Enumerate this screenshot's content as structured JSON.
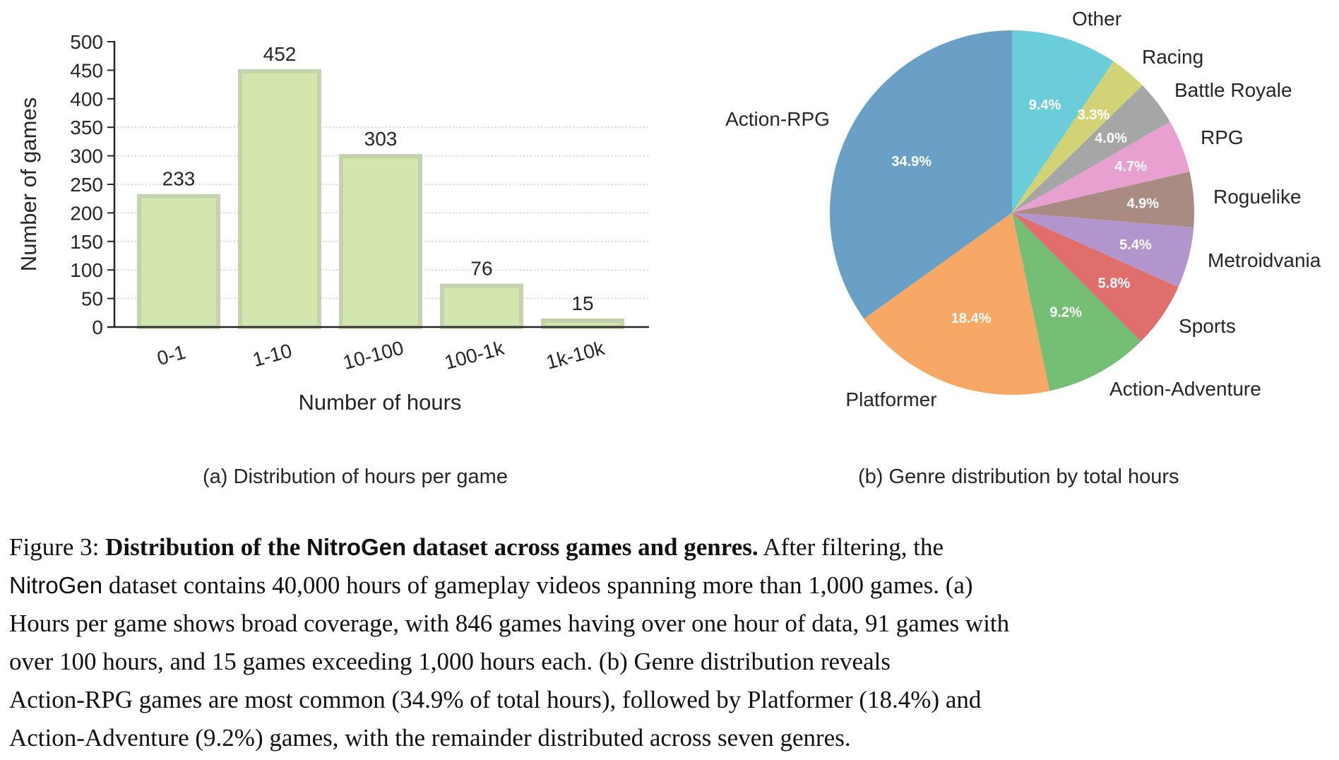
{
  "chart_data": [
    {
      "type": "bar",
      "title": "",
      "caption": "(a) Distribution of hours per game",
      "xlabel": "Number of hours",
      "ylabel": "Number of games",
      "categories": [
        "0-1",
        "1-10",
        "10-100",
        "100-1k",
        "1k-10k"
      ],
      "values": [
        233,
        452,
        303,
        76,
        15
      ],
      "value_labels": [
        "233",
        "452",
        "303",
        "76",
        "15"
      ],
      "ylim": [
        0,
        500
      ],
      "yticks": [
        "0",
        "50",
        "100",
        "150",
        "200",
        "250",
        "300",
        "350",
        "400",
        "450",
        "500"
      ],
      "grid": "horizontal dotted",
      "bar_color": "#d2e6ae",
      "bar_edge_color": "#c4d3ad"
    },
    {
      "type": "pie",
      "title": "",
      "caption": "(b) Genre distribution by total hours",
      "labels": [
        "Other",
        "Racing",
        "Battle Royale",
        "RPG",
        "Roguelike",
        "Metroidvania",
        "Sports",
        "Action-Adventure",
        "Platformer",
        "Action-RPG"
      ],
      "values": [
        9.4,
        3.3,
        4.0,
        4.7,
        4.9,
        5.4,
        5.8,
        9.2,
        18.4,
        34.9
      ],
      "pct_labels": [
        "9.4%",
        "3.3%",
        "4.0%",
        "4.7%",
        "4.9%",
        "5.4%",
        "5.8%",
        "9.2%",
        "18.4%",
        "34.9%"
      ],
      "colors": [
        "#6bcdda",
        "#d1d376",
        "#a6a6a6",
        "#e7a0cf",
        "#a98b82",
        "#b195cc",
        "#e06e6c",
        "#74be76",
        "#f8a866",
        "#6a9fc6"
      ],
      "start_angle": "12 o'clock, clockwise"
    }
  ],
  "figure": {
    "label": "Figure 3:",
    "title_bold_1": "Distribution of the ",
    "title_bold_nitro": "NitroGen",
    "title_bold_2": " dataset across games and genres.",
    "lines": {
      "l1_tail": " After filtering, the",
      "l2_nitro": "NitroGen",
      "l2_rest": " dataset contains 40,000 hours of gameplay videos spanning more than 1,000 games. (a)",
      "l3": "Hours per game shows broad coverage, with 846 games having over one hour of data, 91 games with",
      "l4": "over 100 hours, and 15 games exceeding 1,000 hours each. (b) Genre distribution reveals",
      "l5": "Action-RPG games are most common (34.9% of total hours), followed by Platformer (18.4%) and",
      "l6": "Action-Adventure (9.2%) games, with the remainder distributed across seven genres."
    }
  }
}
